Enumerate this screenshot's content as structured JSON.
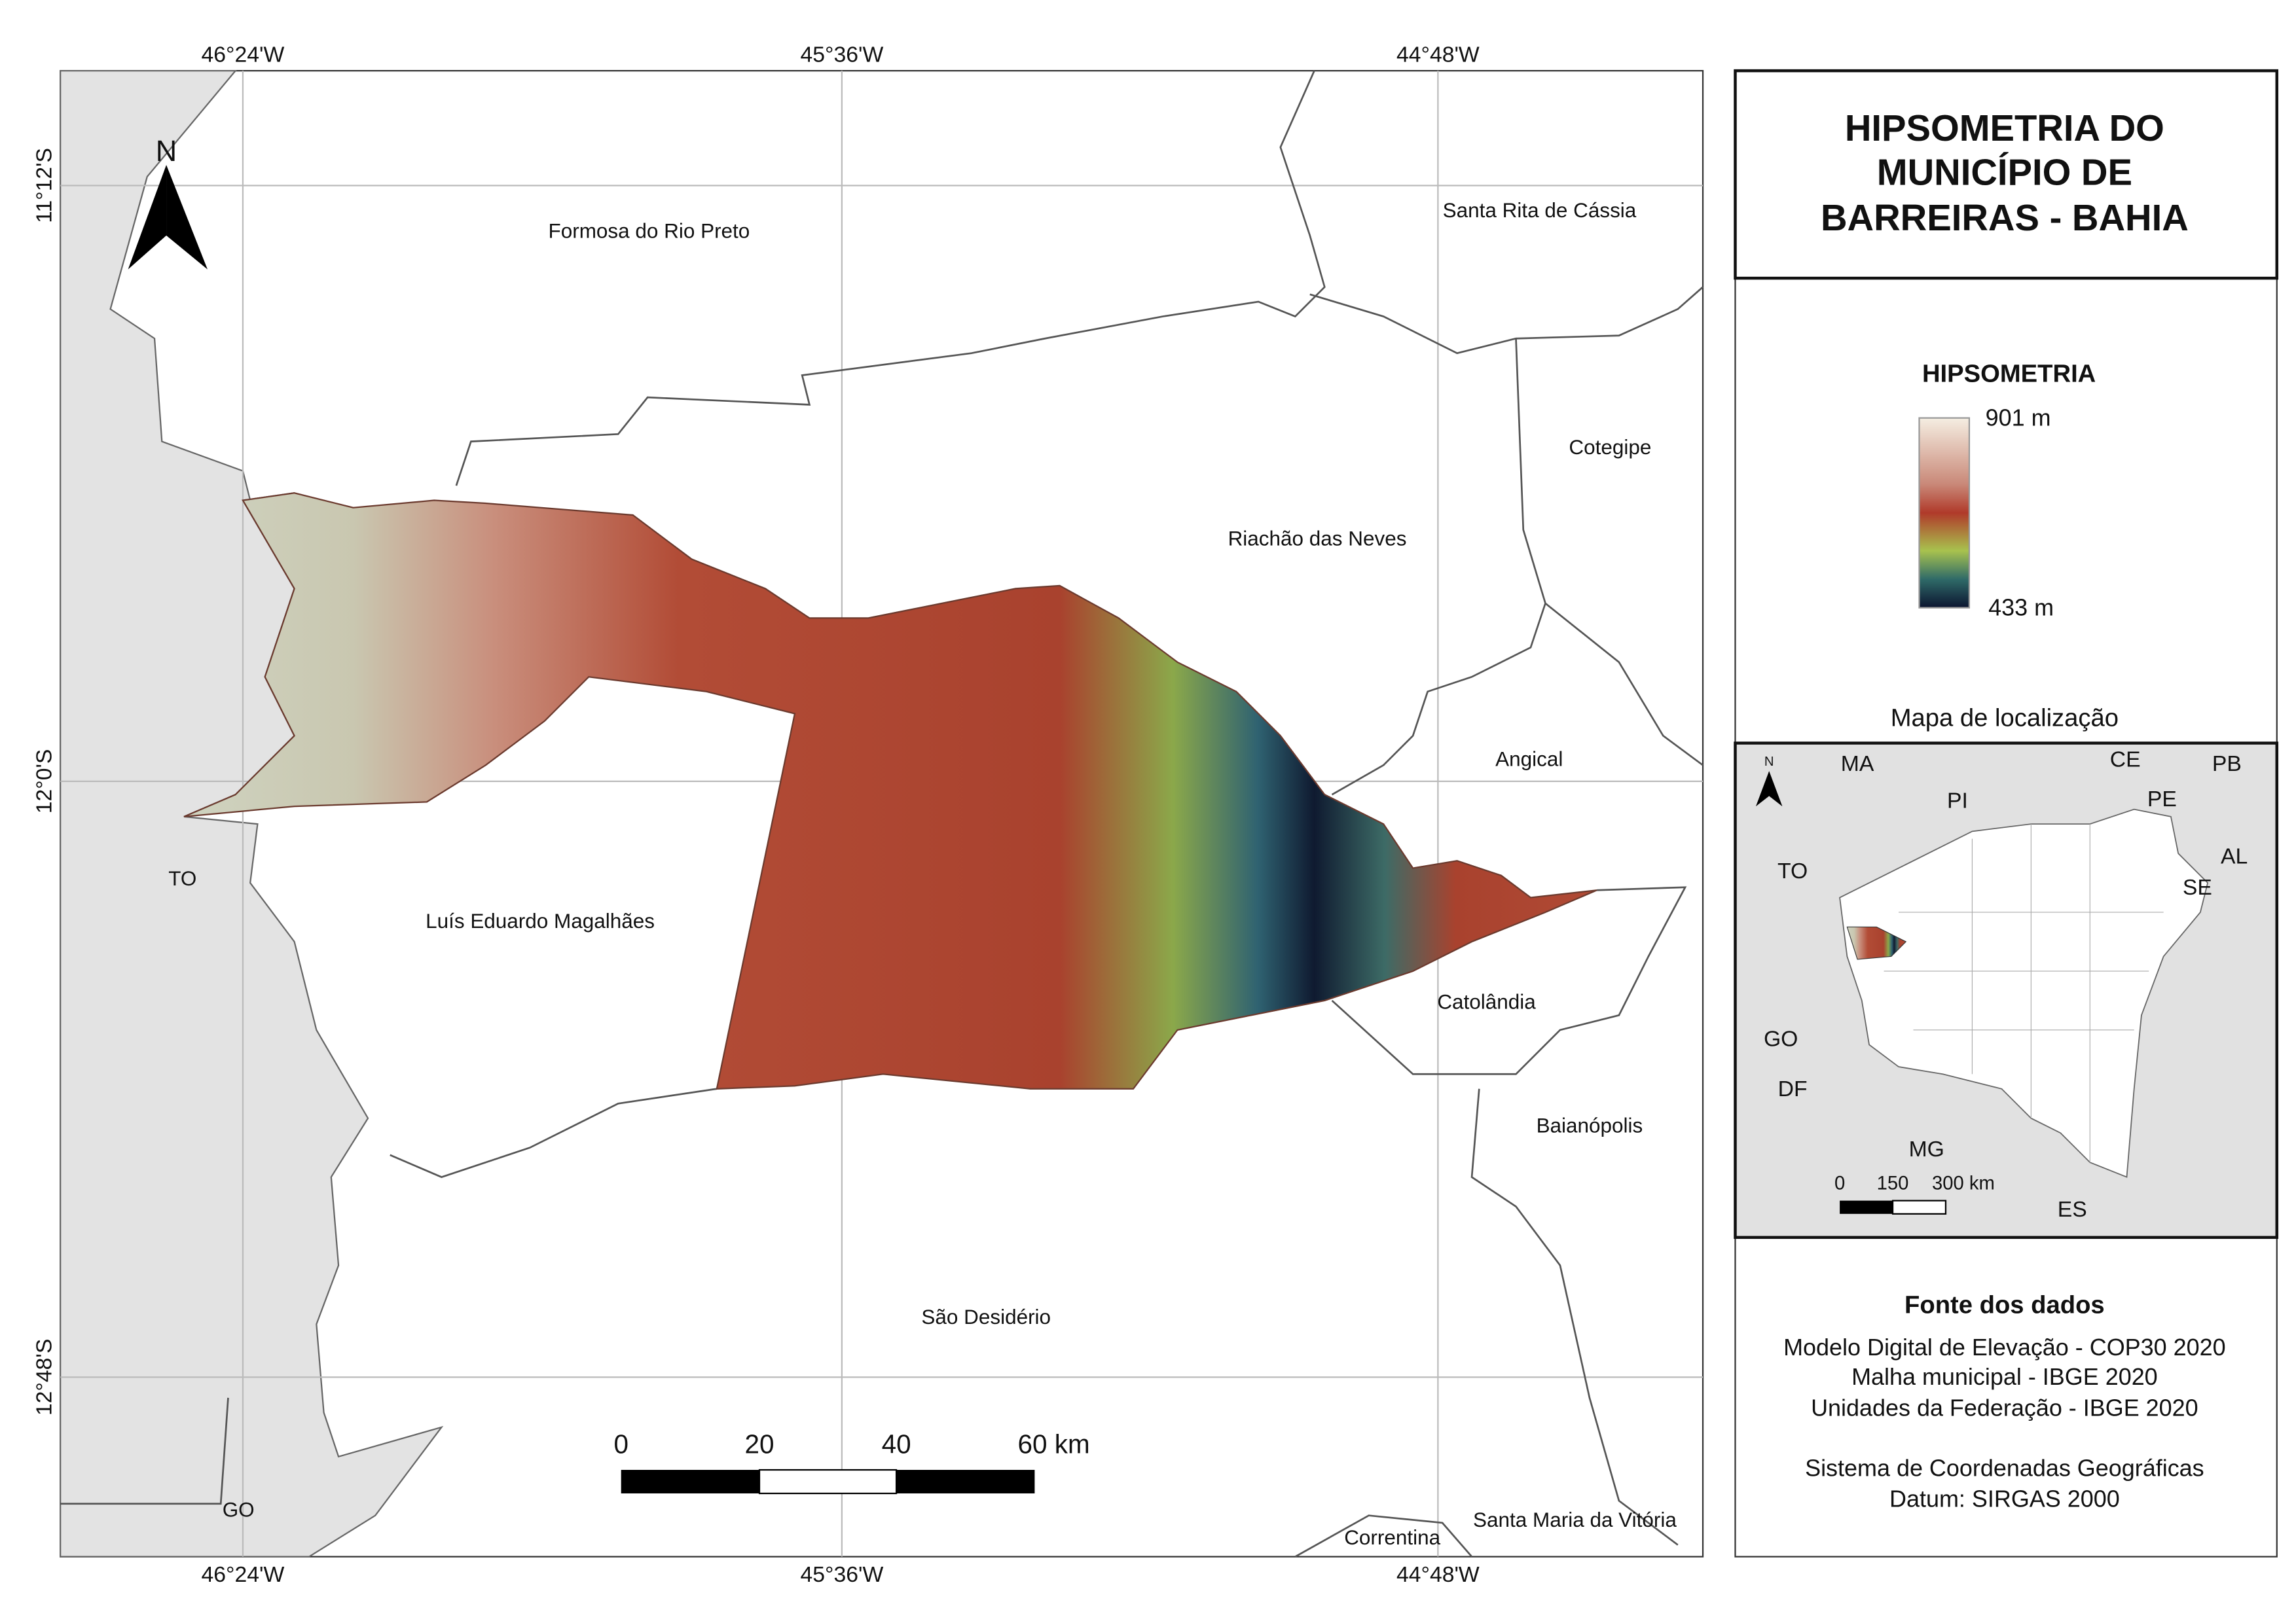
{
  "map": {
    "graticule": {
      "top": [
        "46°24'W",
        "45°36'W",
        "44°48'W"
      ],
      "bottom": [
        "46°24'W",
        "45°36'W",
        "44°48'W"
      ],
      "left": [
        "11°12'S",
        "12°0'S",
        "12°48'S"
      ]
    },
    "north_arrow": "N",
    "places": [
      "Formosa do Rio Preto",
      "Santa Rita de Cássia",
      "Cotegipe",
      "Riachão das Neves",
      "Angical",
      "TO",
      "Luís Eduardo Magalhães",
      "Catolândia",
      "Baianópolis",
      "São Desidério",
      "GO",
      "Correntina",
      "Santa Maria da Vitória"
    ],
    "scale_bar": [
      "0",
      "20",
      "40",
      "60 km"
    ]
  },
  "panel": {
    "title": [
      "HIPSOMETRIA DO",
      "MUNICÍPIO DE",
      "BARREIRAS - BAHIA"
    ],
    "legend": {
      "title": "HIPSOMETRIA",
      "max": "901 m",
      "min": "433 m"
    },
    "location_map": {
      "title": "Mapa de localização",
      "north": "N",
      "states": [
        "MA",
        "PI",
        "CE",
        "PB",
        "PE",
        "AL",
        "SE",
        "TO",
        "GO",
        "DF",
        "MG",
        "ES"
      ],
      "scale": [
        "0",
        "150",
        "300 km"
      ]
    },
    "sources": {
      "title": "Fonte dos dados",
      "lines": [
        "Modelo Digital de Elevação - COP30 2020",
        "Malha municipal - IBGE 2020",
        "Unidades da Federação - IBGE 2020"
      ],
      "crs": [
        "Sistema de Coordenadas Geográficas",
        "Datum: SIRGAS 2000"
      ]
    }
  }
}
